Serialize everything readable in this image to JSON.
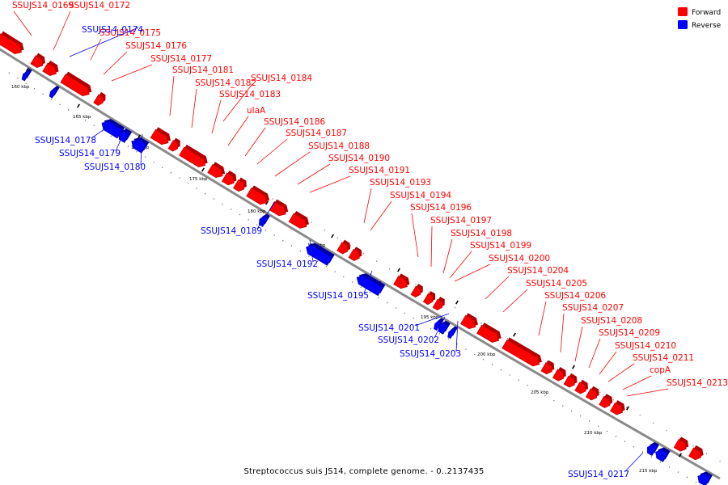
{
  "legend": [
    {
      "label": "Forward",
      "color": "#ff0000"
    },
    {
      "label": "Reverse",
      "color": "#0000ff"
    }
  ],
  "caption": "Streptococcus suis JS14, complete genome. - 0..2137435",
  "colors": {
    "forward": "#ff0000",
    "reverse": "#0000ff",
    "backbone": "#8a8a8a",
    "forward_edge": "#b00000",
    "reverse_edge": "#0000a0"
  },
  "ticks": [
    "160 kbp",
    "165 kbp",
    "170 kbp",
    "175 kbp",
    "180 kbp",
    "185 kbp",
    "190 kbp",
    "195 kbp",
    "200 kbp",
    "205 kbp",
    "210 kbp",
    "215 kbp"
  ],
  "forward_labels": [
    "SSUJS14_0169",
    "SSUJS14_0172",
    "SSUJS14_0175",
    "SSUJS14_0176",
    "SSUJS14_0177",
    "SSUJS14_0181",
    "SSUJS14_0182",
    "SSUJS14_0184",
    "SSUJS14_0183",
    "ulaA",
    "SSUJS14_0186",
    "SSUJS14_0187",
    "SSUJS14_0188",
    "SSUJS14_0190",
    "SSUJS14_0191",
    "SSUJS14_0193",
    "SSUJS14_0194",
    "SSUJS14_0196",
    "SSUJS14_0197",
    "SSUJS14_0198",
    "SSUJS14_0199",
    "SSUJS14_0200",
    "SSUJS14_0204",
    "SSUJS14_0205",
    "SSUJS14_0206",
    "SSUJS14_0207",
    "SSUJS14_0208",
    "SSUJS14_0209",
    "SSUJS14_0210",
    "SSUJS14_0211",
    "copA",
    "SSUJS14_0213"
  ],
  "reverse_labels": [
    "SSUJS14_0174",
    "SSUJS14_0178",
    "SSUJS14_0179",
    "SSUJS14_0180",
    "SSUJS14_0189",
    "SSUJS14_0192",
    "SSUJS14_0195",
    "SSUJS14_0201",
    "SSUJS14_0202",
    "SSUJS14_0203",
    "SSUJS14_0217"
  ]
}
